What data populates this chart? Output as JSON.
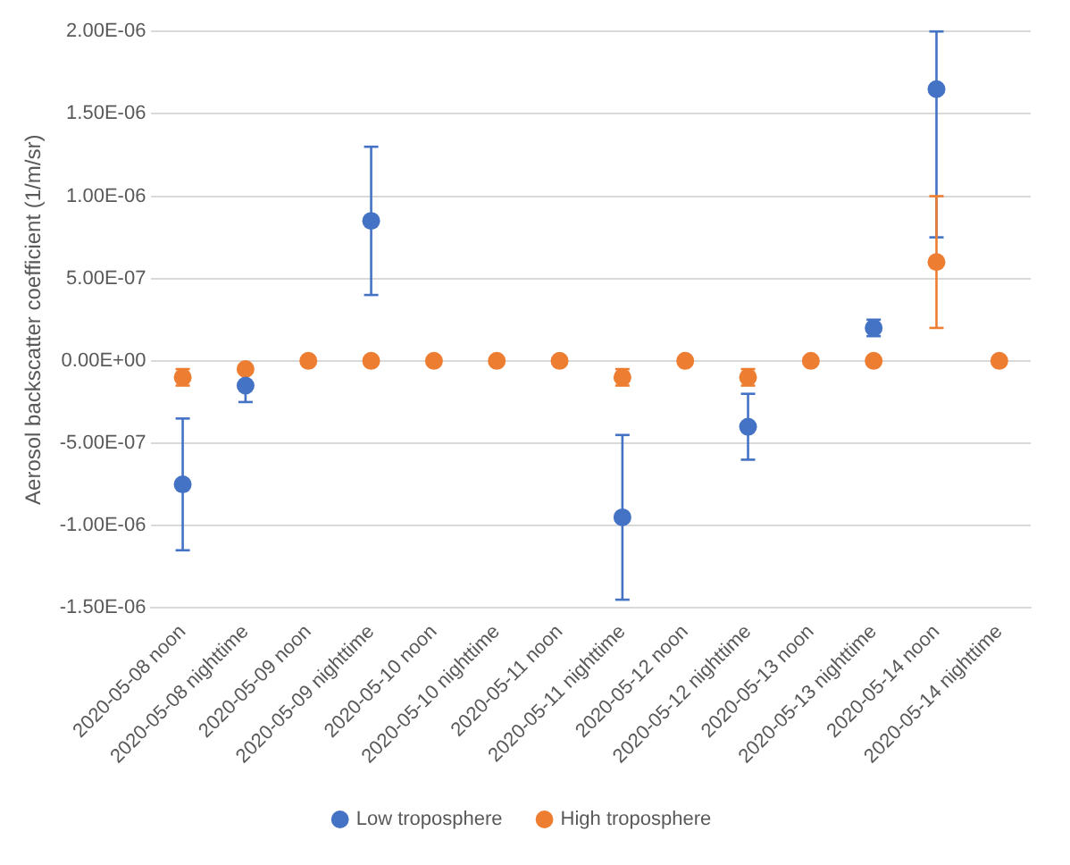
{
  "chart_data": {
    "type": "scatter",
    "ylabel": "Aerosol backscatter coefficient (1/m/sr)",
    "categories": [
      "2020-05-08 noon",
      "2020-05-08 nighttime",
      "2020-05-09 noon",
      "2020-05-09 nighttime",
      "2020-05-10 noon",
      "2020-05-10 nighttime",
      "2020-05-11 noon",
      "2020-05-11 nighttime",
      "2020-05-12 noon",
      "2020-05-12 nighttime",
      "2020-05-13 noon",
      "2020-05-13 nighttime",
      "2020-05-14 noon",
      "2020-05-14 nighttime"
    ],
    "series": [
      {
        "name": "Low troposphere",
        "color": "#4472c4",
        "values": [
          -7.5e-07,
          -1.5e-07,
          null,
          8.5e-07,
          null,
          null,
          null,
          -9.5e-07,
          null,
          -4e-07,
          null,
          2e-07,
          1.65e-06,
          null
        ],
        "errors": [
          4e-07,
          1e-07,
          null,
          4.5e-07,
          null,
          null,
          null,
          5e-07,
          null,
          2e-07,
          null,
          5e-08,
          [
            7.5e-07,
            2e-06
          ],
          null
        ]
      },
      {
        "name": "High troposphere",
        "color": "#ed7d31",
        "values": [
          -1e-07,
          -5e-08,
          0,
          0,
          0,
          0,
          0,
          -1e-07,
          0,
          -1e-07,
          0,
          0,
          6e-07,
          0
        ],
        "errors": [
          5e-08,
          null,
          null,
          null,
          null,
          null,
          null,
          5e-08,
          null,
          5e-08,
          null,
          null,
          4e-07,
          null
        ]
      }
    ],
    "ylim": [
      -1.5e-06,
      2e-06
    ],
    "yticks": [
      {
        "value": -1.5e-06,
        "label": "-1.50E-06"
      },
      {
        "value": -1e-06,
        "label": "-1.00E-06"
      },
      {
        "value": -5e-07,
        "label": "-5.00E-07"
      },
      {
        "value": 0,
        "label": "0.00E+00"
      },
      {
        "value": 5e-07,
        "label": "5.00E-07"
      },
      {
        "value": 1e-06,
        "label": "1.00E-06"
      },
      {
        "value": 1.5e-06,
        "label": "1.50E-06"
      },
      {
        "value": 2e-06,
        "label": "2.00E-06"
      }
    ],
    "grid": "y",
    "legend": "bottom",
    "marker": "circle"
  }
}
